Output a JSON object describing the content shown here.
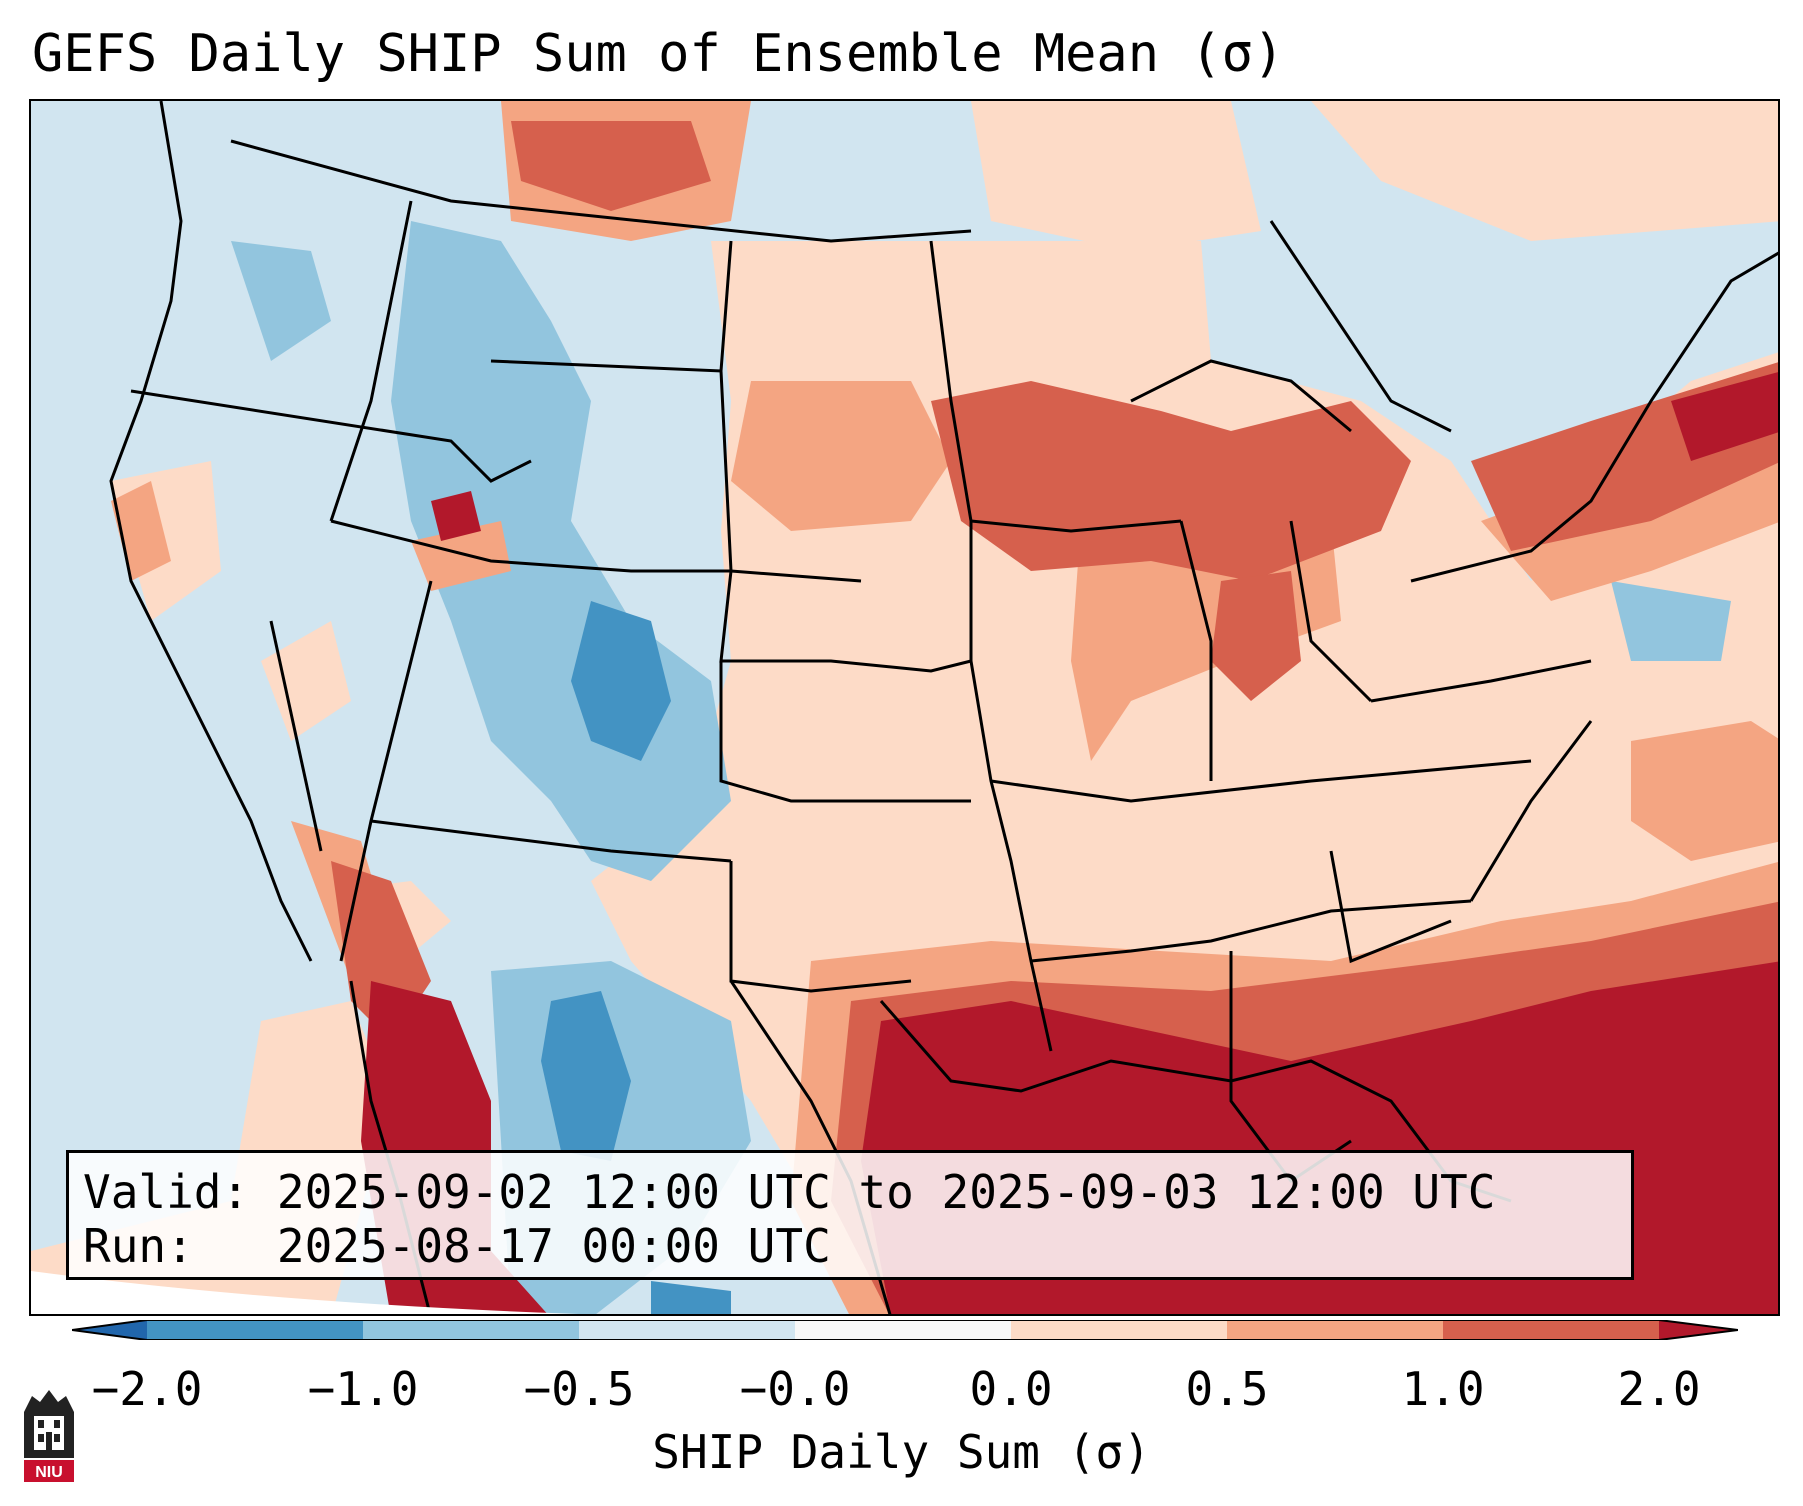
{
  "title": "GEFS Daily SHIP Sum of Ensemble Mean (σ)",
  "info": {
    "valid_label": "Valid:",
    "valid_value": "2025-09-02 12:00 UTC to 2025-09-03 12:00 UTC",
    "run_label": "Run:",
    "run_value": "2025-08-17 00:00 UTC"
  },
  "colorbar": {
    "label": "SHIP Daily Sum (σ)",
    "ticks": [
      "−2.0",
      "−1.0",
      "−0.5",
      "−0.0",
      "0.0",
      "0.5",
      "1.0",
      "2.0"
    ],
    "colors": [
      "#2166ac",
      "#4393c3",
      "#92c5de",
      "#d1e5f0",
      "#f7f7f7",
      "#fddbc7",
      "#f4a582",
      "#d6604d",
      "#b2182b"
    ]
  },
  "logo": {
    "text": "NIU"
  },
  "legend_colors": {
    "strong_neg": "#4393c3",
    "neg": "#92c5de",
    "weak_neg": "#d1e5f0",
    "weak_pos": "#fddbc7",
    "pos": "#f4a582",
    "strong_pos": "#d6604d",
    "extreme_pos": "#b2182b"
  }
}
